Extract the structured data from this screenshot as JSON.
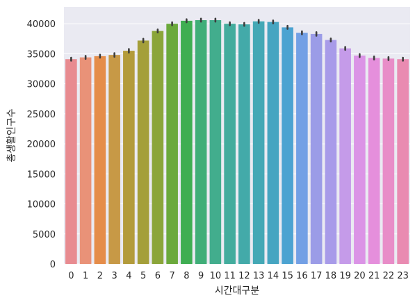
{
  "chart_data": {
    "type": "bar",
    "xlabel": "시간대구분",
    "ylabel": "총생활인구수",
    "categories": [
      "0",
      "1",
      "2",
      "3",
      "4",
      "5",
      "6",
      "7",
      "8",
      "9",
      "10",
      "11",
      "12",
      "13",
      "14",
      "15",
      "16",
      "17",
      "18",
      "19",
      "20",
      "21",
      "22",
      "23"
    ],
    "values": [
      34100,
      34400,
      34600,
      34800,
      35500,
      37200,
      38800,
      40000,
      40500,
      40600,
      40600,
      40000,
      39900,
      40400,
      40300,
      39400,
      38500,
      38300,
      37300,
      35900,
      34700,
      34300,
      34200,
      34100
    ],
    "error_high": [
      34350,
      34650,
      34850,
      35100,
      35800,
      37500,
      39050,
      40250,
      40750,
      40850,
      40850,
      40250,
      40150,
      40650,
      40550,
      39650,
      38750,
      38600,
      37550,
      36150,
      34950,
      34550,
      34450,
      34350
    ],
    "error_low": [
      33850,
      34150,
      34350,
      34500,
      35200,
      36900,
      38550,
      39750,
      40250,
      40350,
      40350,
      39750,
      39650,
      40150,
      40050,
      39150,
      38250,
      38000,
      37050,
      35650,
      34450,
      34050,
      33950,
      33850
    ],
    "yticks": [
      0,
      5000,
      10000,
      15000,
      20000,
      25000,
      30000,
      35000,
      40000
    ],
    "ytick_labels": [
      "0",
      "5000",
      "10000",
      "15000",
      "20000",
      "25000",
      "30000",
      "35000",
      "40000"
    ],
    "ylim": [
      0,
      42800
    ],
    "grid": true,
    "background": "#eaeaf2",
    "colors": [
      "#e88b90",
      "#e99278",
      "#e58d4a",
      "#c79946",
      "#b39b3b",
      "#a49f3a",
      "#8ba53a",
      "#6ba93c",
      "#3fae52",
      "#40ae78",
      "#42ad8d",
      "#43ac9d",
      "#43aaa9",
      "#44a8b5",
      "#46a5c1",
      "#4ca3d1",
      "#73a0e5",
      "#9b9ce7",
      "#a89be9",
      "#c59be9",
      "#db94e6",
      "#e58fdc",
      "#e88dc8",
      "#e98bb1"
    ]
  }
}
